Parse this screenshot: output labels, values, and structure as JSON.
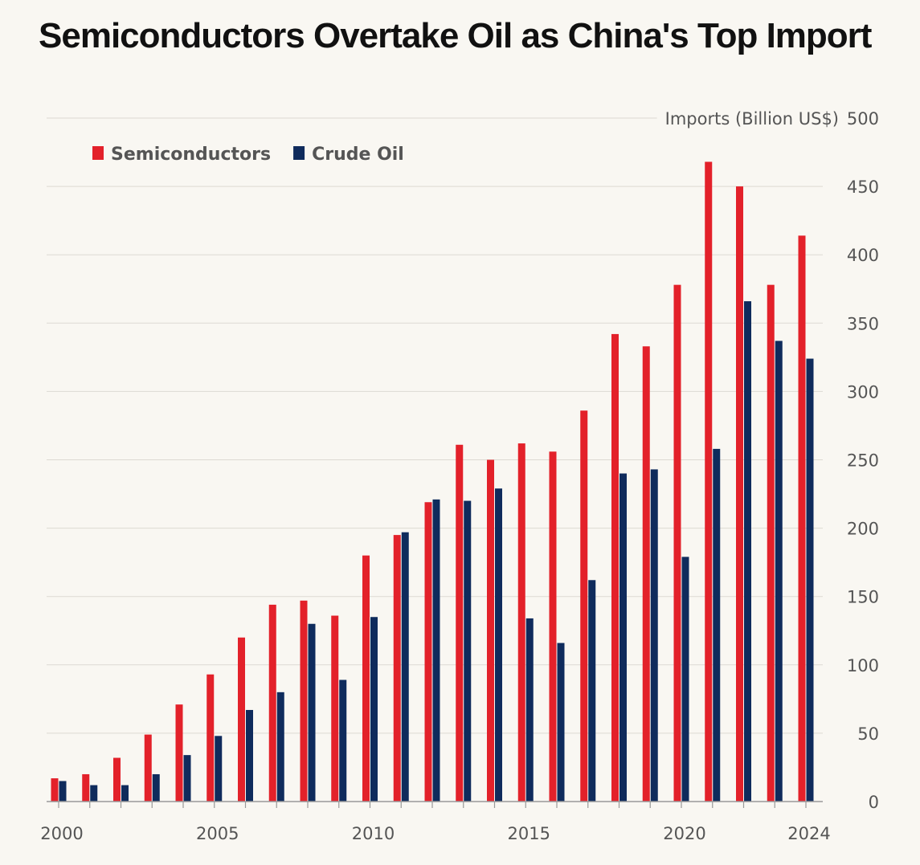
{
  "chart_data": {
    "type": "bar",
    "title": "Semiconductors Overtake Oil as China's Top Import",
    "ylabel": "Imports (Billion US$)",
    "xlabel": "",
    "ylim": [
      0,
      500
    ],
    "y_ticks": [
      0,
      50,
      100,
      150,
      200,
      250,
      300,
      350,
      400,
      450,
      500
    ],
    "x_tick_labels": [
      "2000",
      "2005",
      "2010",
      "2015",
      "2020",
      "2024"
    ],
    "grid": true,
    "legend_position": "top-left",
    "categories": [
      2000,
      2001,
      2002,
      2003,
      2004,
      2005,
      2006,
      2007,
      2008,
      2009,
      2010,
      2011,
      2012,
      2013,
      2014,
      2015,
      2016,
      2017,
      2018,
      2019,
      2020,
      2021,
      2022,
      2023,
      2024
    ],
    "series": [
      {
        "name": "Semiconductors",
        "color": "#e3212a",
        "values": [
          17,
          20,
          32,
          49,
          71,
          93,
          120,
          144,
          147,
          136,
          180,
          195,
          219,
          261,
          250,
          262,
          256,
          286,
          342,
          333,
          378,
          468,
          450,
          378,
          414
        ]
      },
      {
        "name": "Crude Oil",
        "color": "#0f2b5c",
        "values": [
          15,
          12,
          12,
          20,
          34,
          48,
          67,
          80,
          130,
          89,
          135,
          197,
          221,
          220,
          229,
          134,
          116,
          162,
          240,
          243,
          179,
          258,
          366,
          337,
          324
        ]
      }
    ]
  }
}
